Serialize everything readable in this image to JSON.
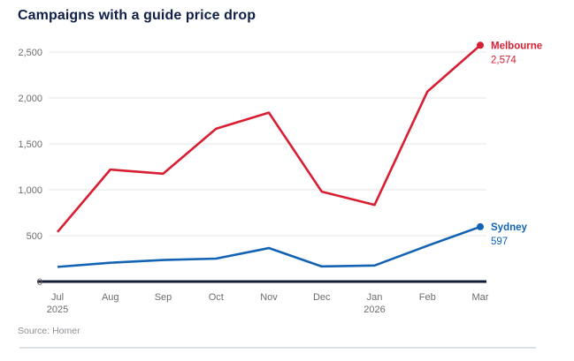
{
  "title": "Campaigns with a guide price drop",
  "source_note": "Source: Homer",
  "colors": {
    "melbourne_red": "#d81e32",
    "sydney_blue": "#1263b2",
    "title_navy": "#101f47",
    "zero_axis": "#131b36",
    "gridline": "#e5e5e5",
    "tick_label": "#6d6d6d",
    "source_gray": "#8b9096",
    "divider": "#dde2e8"
  },
  "chart_data": {
    "type": "line",
    "title": "Campaigns with a guide price drop",
    "xlabel": "",
    "ylabel": "",
    "ylim": [
      0,
      2500
    ],
    "grid": true,
    "legend_position": "line-end-labels",
    "categories": [
      {
        "label": "Jul",
        "sub": "2025"
      },
      {
        "label": "Aug",
        "sub": ""
      },
      {
        "label": "Sep",
        "sub": ""
      },
      {
        "label": "Oct",
        "sub": ""
      },
      {
        "label": "Nov",
        "sub": ""
      },
      {
        "label": "Dec",
        "sub": ""
      },
      {
        "label": "Jan",
        "sub": "2026"
      },
      {
        "label": "Feb",
        "sub": ""
      },
      {
        "label": "Mar",
        "sub": ""
      }
    ],
    "yticks": [
      {
        "value": 0,
        "label": "0"
      },
      {
        "value": 500,
        "label": "500"
      },
      {
        "value": 1000,
        "label": "1,000"
      },
      {
        "value": 1500,
        "label": "1,500"
      },
      {
        "value": 2000,
        "label": "2,000"
      },
      {
        "value": 2500,
        "label": "2,500"
      }
    ],
    "series": [
      {
        "name": "Melbourne",
        "color": "#d81e32",
        "values": [
          540,
          1220,
          1175,
          1665,
          1840,
          980,
          835,
          2070,
          2574
        ],
        "end_label": "2,574"
      },
      {
        "name": "Sydney",
        "color": "#1263b2",
        "values": [
          160,
          205,
          235,
          250,
          365,
          165,
          175,
          390,
          597
        ],
        "end_label": "597"
      }
    ]
  }
}
